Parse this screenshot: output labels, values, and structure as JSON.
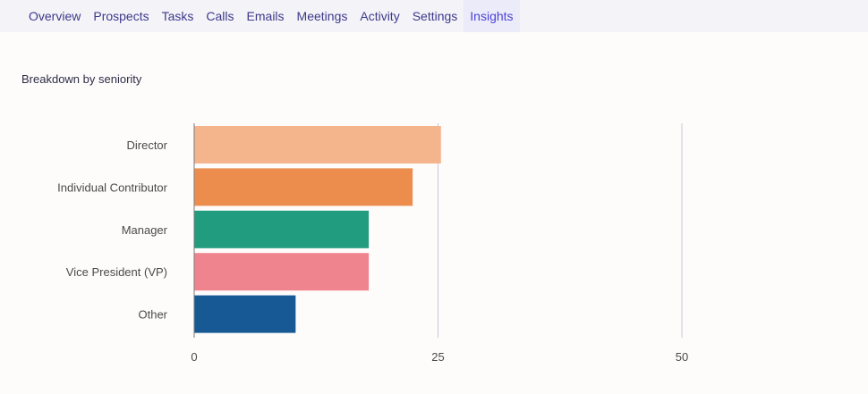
{
  "nav": {
    "items": [
      {
        "label": "Overview",
        "active": false
      },
      {
        "label": "Prospects",
        "active": false
      },
      {
        "label": "Tasks",
        "active": false
      },
      {
        "label": "Calls",
        "active": false
      },
      {
        "label": "Emails",
        "active": false
      },
      {
        "label": "Meetings",
        "active": false
      },
      {
        "label": "Activity",
        "active": false
      },
      {
        "label": "Settings",
        "active": false
      },
      {
        "label": "Insights",
        "active": true
      }
    ]
  },
  "card": {
    "title": "Breakdown by seniority"
  },
  "chart_data": {
    "type": "bar",
    "orientation": "horizontal",
    "categories": [
      "Director",
      "Individual Contributor",
      "Manager",
      "Vice President (VP)",
      "Other"
    ],
    "values": [
      25.3,
      22.4,
      17.9,
      17.9,
      10.4
    ],
    "colors": [
      "#f4b48c",
      "#ec8d4e",
      "#229c7e",
      "#f0848e",
      "#165995"
    ],
    "xlim": [
      0,
      50
    ],
    "xticks": [
      "0",
      "25",
      "50"
    ],
    "grid": true,
    "legend": "none"
  }
}
